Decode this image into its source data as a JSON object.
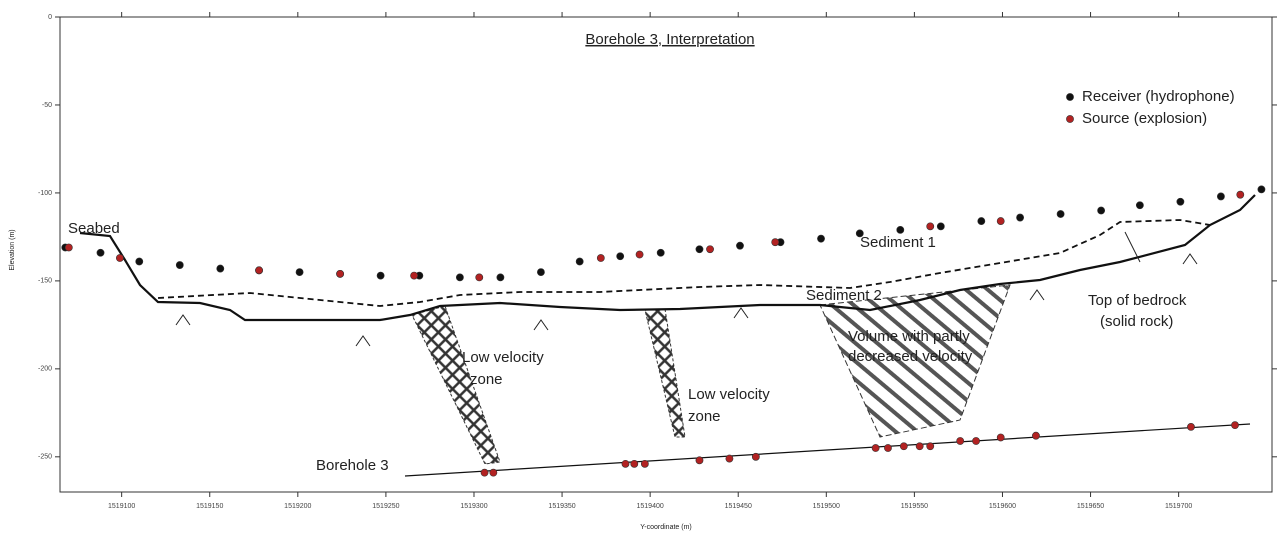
{
  "chart_data": {
    "type": "scatter",
    "title": "Borehole 3, Interpretation",
    "x_label": "Y-coordinate (m)",
    "y_label": "Elevation (m)",
    "xlim": [
      1519065,
      1519753
    ],
    "ylim": [
      -270,
      0
    ],
    "xticks": [
      1519100,
      1519150,
      1519200,
      1519250,
      1519300,
      1519350,
      1519400,
      1519450,
      1519500,
      1519550,
      1519600,
      1519650,
      1519700
    ],
    "yticks": [
      0,
      -50,
      -100,
      -150,
      -200,
      -250
    ],
    "legend": "top-right",
    "series": [
      {
        "name": "Receiver (hydrophone)",
        "color": "#111111",
        "x": [
          1519068,
          1519088,
          1519110,
          1519133,
          1519156,
          1519178,
          1519201,
          1519224,
          1519247,
          1519269,
          1519292,
          1519315,
          1519338,
          1519360,
          1519383,
          1519406,
          1519428,
          1519451,
          1519474,
          1519497,
          1519519,
          1519542,
          1519565,
          1519588,
          1519610,
          1519633,
          1519656,
          1519678,
          1519701,
          1519724,
          1519747
        ],
        "y": [
          -131,
          -134,
          -139,
          -141,
          -143,
          -144,
          -145,
          -146,
          -147,
          -147,
          -148,
          -148,
          -145,
          -139,
          -136,
          -134,
          -132,
          -130,
          -128,
          -126,
          -123,
          -121,
          -119,
          -116,
          -114,
          -112,
          -110,
          -107,
          -105,
          -102,
          -98
        ]
      },
      {
        "name": "Source (explosion)",
        "color": "#b22222",
        "x": [
          1519070,
          1519099,
          1519178,
          1519224,
          1519266,
          1519303,
          1519372,
          1519394,
          1519434,
          1519471,
          1519559,
          1519599,
          1519735,
          1519306,
          1519311,
          1519386,
          1519391,
          1519397,
          1519428,
          1519445,
          1519460,
          1519528,
          1519535,
          1519544,
          1519553,
          1519559,
          1519576,
          1519585,
          1519599,
          1519619,
          1519707,
          1519732
        ],
        "y": [
          -131,
          -137,
          -144,
          -146,
          -147,
          -148,
          -137,
          -135,
          -132,
          -128,
          -119,
          -116,
          -101,
          -259,
          -259,
          -254,
          -254,
          -254,
          -252,
          -251,
          -250,
          -245,
          -245,
          -244,
          -244,
          -244,
          -241,
          -241,
          -239,
          -238,
          -233,
          -232
        ]
      }
    ],
    "annotations": [
      "Seabed",
      "Sediment 1",
      "Sediment 2",
      "Top of bedrock",
      "(solid rock)",
      "Low velocity",
      "zone",
      "Low velocity",
      "zone",
      "Volume with partly",
      "decreased velocity",
      "Borehole 3"
    ]
  }
}
